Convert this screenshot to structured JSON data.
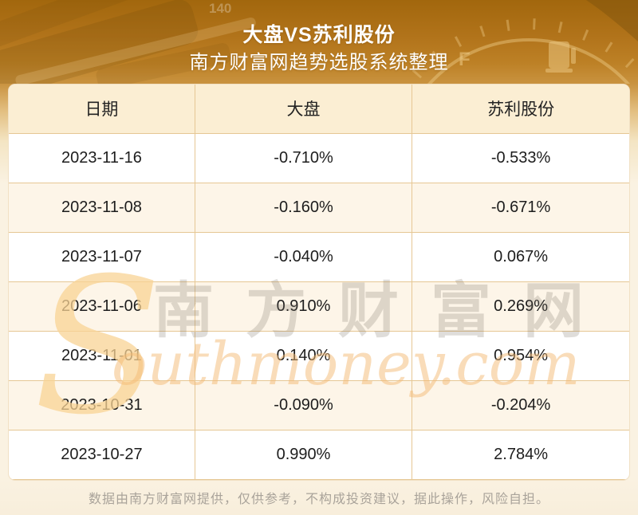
{
  "chart_data": {
    "type": "table",
    "title": "大盘VS苏利股份",
    "subtitle": "南方财富网趋势选股系统整理",
    "columns": [
      "日期",
      "大盘",
      "苏利股份"
    ],
    "rows": [
      [
        "2023-11-16",
        "-0.710%",
        "-0.533%"
      ],
      [
        "2023-11-08",
        "-0.160%",
        "-0.671%"
      ],
      [
        "2023-11-07",
        "-0.040%",
        "0.067%"
      ],
      [
        "2023-11-06",
        "0.910%",
        "0.269%"
      ],
      [
        "2023-11-01",
        "0.140%",
        "0.954%"
      ],
      [
        "2023-10-31",
        "-0.090%",
        "-0.204%"
      ],
      [
        "2023-10-27",
        "0.990%",
        "2.784%"
      ]
    ],
    "series": [
      {
        "name": "大盘",
        "values": [
          -0.71,
          -0.16,
          -0.04,
          0.91,
          0.14,
          -0.09,
          0.99
        ],
        "unit": "%"
      },
      {
        "name": "苏利股份",
        "values": [
          -0.533,
          -0.671,
          0.067,
          0.269,
          0.954,
          -0.204,
          2.784
        ],
        "unit": "%"
      }
    ],
    "x": [
      "2023-11-16",
      "2023-11-08",
      "2023-11-07",
      "2023-11-06",
      "2023-11-01",
      "2023-10-31",
      "2023-10-27"
    ]
  },
  "watermark": {
    "initial": "S",
    "site_name_cjk": "南方财富网",
    "domain_rest": "outhmoney.com"
  },
  "footer": {
    "disclaimer": "数据由南方财富网提供，仅供参考，不构成投资建议，据此操作，风险自担。"
  },
  "banner": {
    "gauge_label_full": "F",
    "speedometer_number": "140"
  },
  "colors": {
    "banner_gold_top": "#a2670d",
    "banner_gold_bottom": "#c99340",
    "page_cream": "#faf2e1",
    "header_row_bg": "#fbeed3",
    "row_bg": "#ffffff",
    "row_alt_bg": "#fdf5e8",
    "table_border": "#e6c794",
    "text_dark": "#1d1d1d",
    "title_text": "#ffffff",
    "footer_text": "#a9a39a",
    "watermark_orange": "#f5c178",
    "watermark_gray": "#7a7066"
  }
}
